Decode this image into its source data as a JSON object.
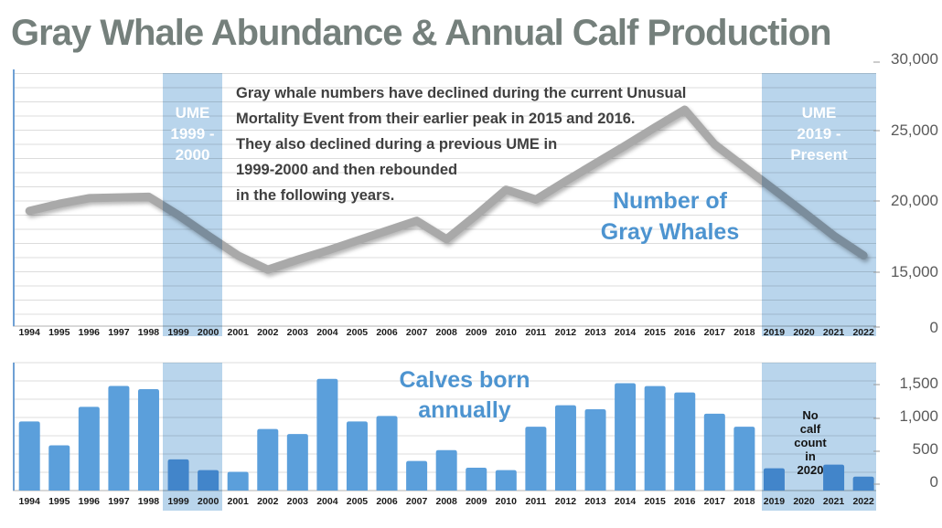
{
  "title": "Gray Whale Abundance & Annual Calf Production",
  "colors": {
    "bar_blue": "#5B9FDB",
    "ume_band_blue": "#B9D5EC",
    "line_gray": "#A9A9A9",
    "series_label_blue": "#4D94D0",
    "title_gray": "#75807C",
    "annotation_gray": "#3F3F3F",
    "axis_number_gray": "#5A5A5A",
    "gridline_gray": "#DCDCDC",
    "axis_line_blue": "#6FA0D4"
  },
  "top_chart": {
    "series_label_lines": [
      "Number of",
      "Gray Whales"
    ],
    "annotation_lines": [
      "Gray whale numbers have declined during the current Unusual",
      "Mortality Event from their earlier peak in 2015 and 2016.",
      "They also declined during a previous UME in",
      "1999-2000 and then rebounded",
      "in the following years."
    ],
    "ume_bands": [
      {
        "label": "UME 1999 - 2000",
        "label_lines": [
          "UME",
          "1999 -",
          "2000"
        ]
      },
      {
        "label": "UME 2019 - Present",
        "label_lines": [
          "UME",
          "2019 -",
          "Present"
        ]
      }
    ],
    "y_axis_labels": [
      "30,000",
      "25,000",
      "20,000",
      "15,000",
      "0"
    ]
  },
  "bottom_chart": {
    "series_label_lines": [
      "Calves born",
      "annually"
    ],
    "note_lines": [
      "No",
      "calf",
      "count",
      "in",
      "2020"
    ],
    "y_axis_labels": [
      "1,500",
      "1,000",
      "500",
      "0"
    ]
  },
  "chart_data": [
    {
      "type": "line",
      "title": "Number of Gray Whales",
      "x": [
        1994,
        1995,
        1996,
        1997,
        1998,
        1999,
        2000,
        2001,
        2002,
        2003,
        2004,
        2005,
        2006,
        2007,
        2008,
        2009,
        2010,
        2011,
        2012,
        2013,
        2014,
        2015,
        2016,
        2017,
        2018,
        2019,
        2020,
        2021,
        2022
      ],
      "values": [
        19300,
        19800,
        20200,
        20250,
        20300,
        19000,
        17550,
        16150,
        15150,
        15850,
        16500,
        17200,
        17900,
        18600,
        17300,
        19000,
        20800,
        20100,
        21400,
        22650,
        23900,
        25200,
        26450,
        24000,
        22400,
        20800,
        19200,
        17550,
        16150
      ],
      "ylim": [
        0,
        30000
      ],
      "y_ticks_shown": [
        0,
        15000,
        20000,
        25000,
        30000
      ],
      "grid": true,
      "highlight_bands": [
        {
          "from_year": 1999,
          "to_year": 2000,
          "label": "UME 1999 - 2000"
        },
        {
          "from_year": 2019,
          "to_year": 2022,
          "label": "UME 2019 - Present"
        }
      ]
    },
    {
      "type": "bar",
      "title": "Calves born annually",
      "categories": [
        1994,
        1995,
        1996,
        1997,
        1998,
        1999,
        2000,
        2001,
        2002,
        2003,
        2004,
        2005,
        2006,
        2007,
        2008,
        2009,
        2010,
        2011,
        2012,
        2013,
        2014,
        2015,
        2016,
        2017,
        2018,
        2019,
        2020,
        2021,
        2022
      ],
      "values": [
        945,
        619,
        1146,
        1431,
        1388,
        427,
        279,
        256,
        842,
        774,
        1528,
        945,
        1020,
        404,
        553,
        312,
        280,
        873,
        1167,
        1113,
        1468,
        1430,
        1342,
        1051,
        873,
        304,
        null,
        354,
        190
      ],
      "ylim": [
        0,
        1750
      ],
      "y_ticks_shown": [
        0,
        500,
        1000,
        1500
      ],
      "grid": true,
      "note": "No calf count in 2020",
      "highlight_bands": [
        {
          "from_year": 1999,
          "to_year": 2000,
          "label": "UME 1999 - 2000"
        },
        {
          "from_year": 2019,
          "to_year": 2022,
          "label": "UME 2019 - Present"
        }
      ]
    }
  ]
}
